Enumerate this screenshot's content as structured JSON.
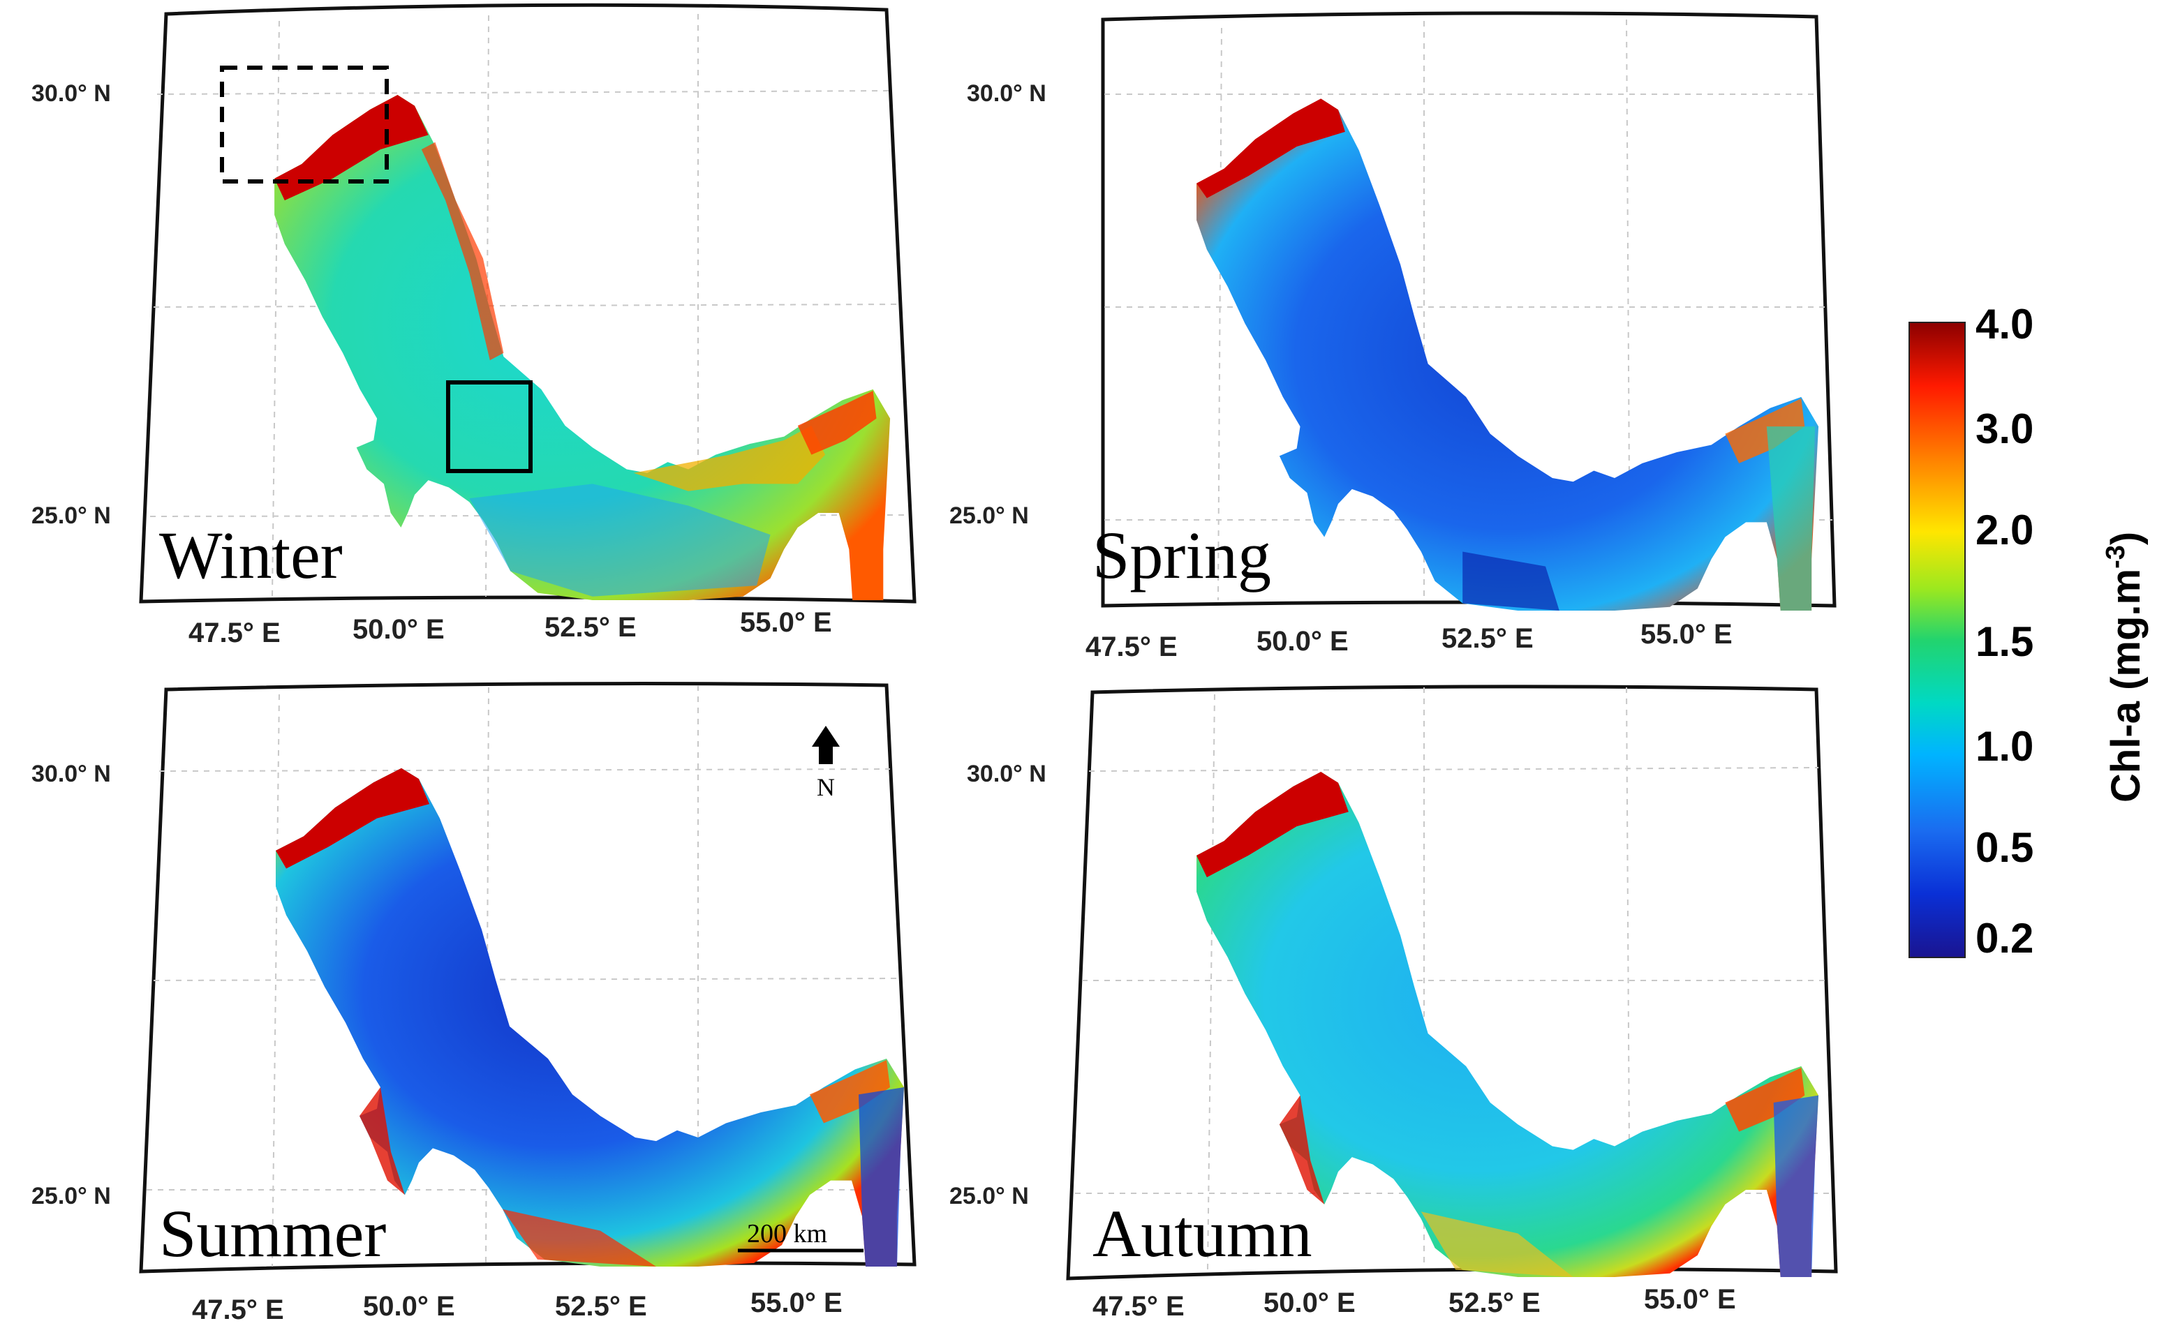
{
  "panels": [
    {
      "season": "Winter",
      "lat_labels": [
        "30.0° N",
        "25.0° N"
      ],
      "lon_labels": [
        "47.5° E",
        "50.0° E",
        "52.5° E",
        "55.0° E"
      ]
    },
    {
      "season": "Spring",
      "lat_labels": [
        "30.0° N",
        "25.0° N"
      ],
      "lon_labels": [
        "47.5° E",
        "50.0° E",
        "52.5° E",
        "55.0° E"
      ]
    },
    {
      "season": "Summer",
      "lat_labels": [
        "30.0° N",
        "25.0° N"
      ],
      "lon_labels": [
        "47.5° E",
        "50.0° E",
        "52.5° E",
        "55.0° E"
      ]
    },
    {
      "season": "Autumn",
      "lat_labels": [
        "30.0° N",
        "25.0° N"
      ],
      "lon_labels": [
        "47.5° E",
        "50.0° E",
        "52.5° E",
        "55.0° E"
      ]
    }
  ],
  "colorbar": {
    "title_prefix": "Chl-a (mg.m",
    "title_sup": "-3",
    "title_suffix": ")",
    "ticks": [
      "4.0",
      "3.0",
      "2.0",
      "1.5",
      "1.0",
      "0.5",
      "0.2"
    ],
    "colors": [
      "#8b0000",
      "#ff2a00",
      "#ffa500",
      "#ffe600",
      "#a6e81f",
      "#22d46e",
      "#00d9c4",
      "#00b8ff",
      "#1a6cf0",
      "#0a2fd6",
      "#1a1490"
    ]
  },
  "scale_bar": {
    "label": "200 km"
  },
  "north_arrow": {
    "label": "N"
  },
  "palette": {
    "winter": {
      "sea": "#18dcc4",
      "south": "#20b8f0",
      "coast": "#ff2a00",
      "east": "#e8d020",
      "deep_coast": "#b00000",
      "mid": "#f0a000"
    },
    "spring": {
      "sea": "#1f6ff0",
      "south": "#1240d8",
      "coast": "#ff3000",
      "east": "#2fd27a",
      "deep_coast": "#b00000",
      "mid": "#2bd4a8"
    },
    "summer": {
      "sea": "#1a5ce8",
      "south": "#1540d0",
      "coast": "#ff2a00",
      "east": "#12d6c8",
      "deep_coast": "#b00000",
      "mid": "#e6d020"
    },
    "autumn": {
      "sea": "#22c8e8",
      "south": "#26dcb8",
      "coast": "#ff2a00",
      "east": "#2ad872",
      "deep_coast": "#b00000",
      "mid": "#e0cc20"
    }
  }
}
